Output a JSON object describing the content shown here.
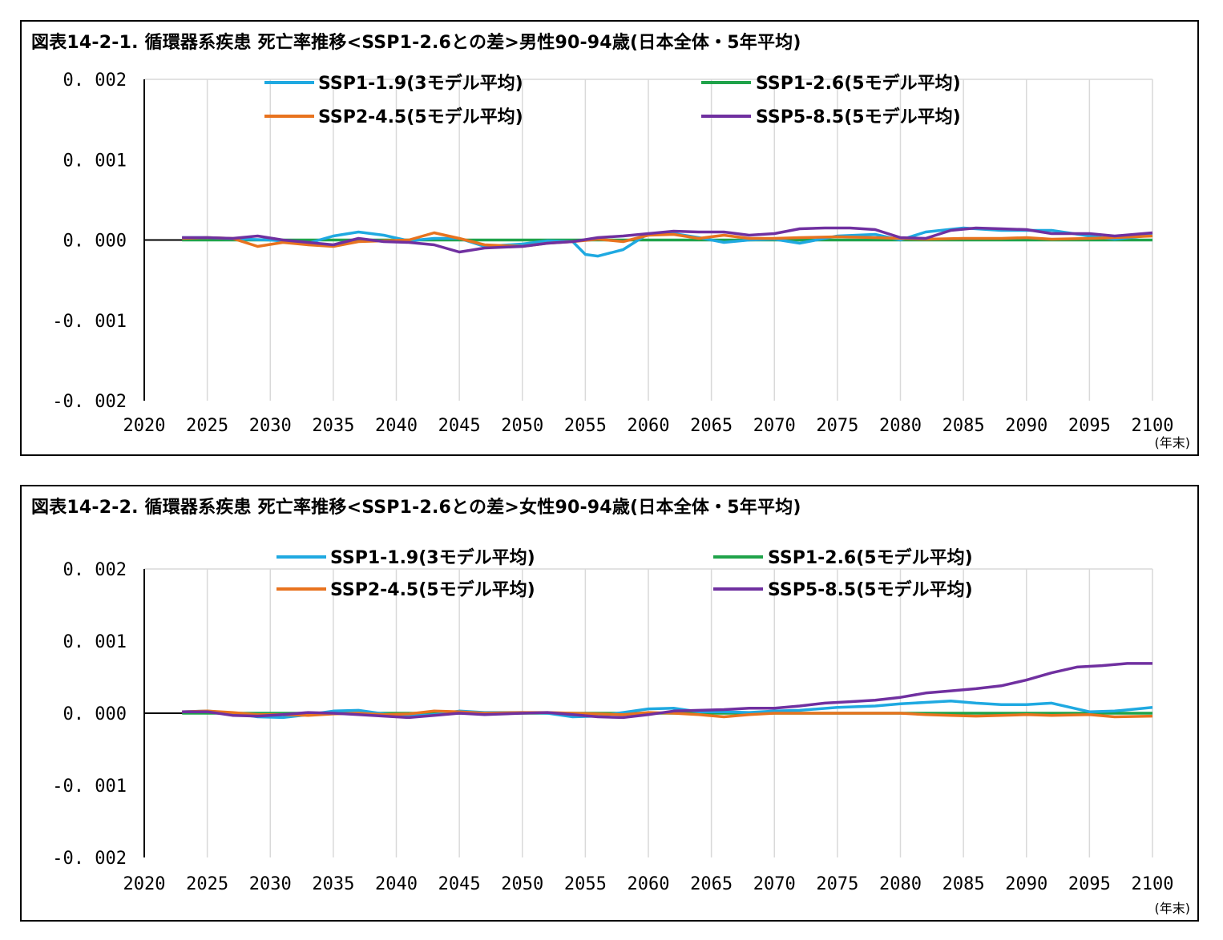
{
  "chart_data": [
    {
      "type": "line",
      "title": "図表14-2-1. 循環器系疾患 死亡率推移<SSP1-2.6との差>男性90-94歳(日本全体・5年平均)",
      "x_unit_label": "(年末)",
      "xlim": [
        2020,
        2100
      ],
      "ylim": [
        -0.002,
        0.002
      ],
      "x_ticks": [
        "2020",
        "2025",
        "2030",
        "2035",
        "2040",
        "2045",
        "2050",
        "2055",
        "2060",
        "2065",
        "2070",
        "2075",
        "2080",
        "2085",
        "2090",
        "2095",
        "2100"
      ],
      "y_ticks": [
        "0.002",
        "0.001",
        "0.000",
        "-0.001",
        "-0.002"
      ],
      "legend_position": "top",
      "grid": "vertical",
      "series": [
        {
          "name": "SSP1-1.9(3モデル平均)",
          "color": "#1FA9E1",
          "x": [
            2023,
            2025,
            2028,
            2030,
            2033,
            2035,
            2037,
            2039,
            2041,
            2043,
            2045,
            2047,
            2050,
            2052,
            2054,
            2055,
            2056,
            2058,
            2060,
            2062,
            2064,
            2066,
            2068,
            2070,
            2072,
            2075,
            2078,
            2080,
            2082,
            2085,
            2088,
            2090,
            2092,
            2095,
            2097,
            2100
          ],
          "y": [
            3e-05,
            3e-05,
            1e-05,
            0.0,
            -4e-05,
            5e-05,
            0.0001,
            6e-05,
            -1e-05,
            2e-05,
            2e-05,
            -8e-05,
            -5e-05,
            -1e-05,
            -2e-05,
            -0.00018,
            -0.0002,
            -0.00012,
            8e-05,
            8e-05,
            3e-05,
            -3e-05,
            0.0,
            1e-05,
            -4e-05,
            5e-05,
            7e-05,
            0.0,
            0.0001,
            0.00015,
            0.00012,
            0.00012,
            0.00012,
            5e-05,
            1e-05,
            6e-05
          ]
        },
        {
          "name": "SSP1-2.6(5モデル平均)",
          "color": "#1FA34A",
          "x": [
            2023,
            2100
          ],
          "y": [
            0.0,
            0.0
          ]
        },
        {
          "name": "SSP2-4.5(5モデル平均)",
          "color": "#E8731F",
          "x": [
            2023,
            2025,
            2027,
            2029,
            2031,
            2033,
            2035,
            2037,
            2039,
            2041,
            2043,
            2045,
            2047,
            2050,
            2052,
            2054,
            2056,
            2058,
            2060,
            2062,
            2064,
            2066,
            2068,
            2070,
            2072,
            2075,
            2078,
            2080,
            2082,
            2085,
            2088,
            2090,
            2092,
            2095,
            2097,
            2100
          ],
          "y": [
            2e-05,
            3e-05,
            2e-05,
            -8e-05,
            -3e-05,
            -6e-05,
            -8e-05,
            -2e-05,
            -1e-05,
            0.0,
            9e-05,
            2e-05,
            -6e-05,
            -8e-05,
            -4e-05,
            -2e-05,
            1e-05,
            -2e-05,
            6e-05,
            7e-05,
            2e-05,
            6e-05,
            2e-05,
            2e-05,
            3e-05,
            4e-05,
            3e-05,
            2e-05,
            1e-05,
            2e-05,
            2e-05,
            3e-05,
            1e-05,
            2e-05,
            3e-05,
            5e-05
          ]
        },
        {
          "name": "SSP5-8.5(5モデル平均)",
          "color": "#7030A0",
          "x": [
            2023,
            2025,
            2027,
            2029,
            2031,
            2033,
            2035,
            2037,
            2039,
            2041,
            2043,
            2045,
            2047,
            2050,
            2052,
            2054,
            2056,
            2058,
            2060,
            2062,
            2064,
            2066,
            2068,
            2070,
            2072,
            2074,
            2076,
            2078,
            2080,
            2082,
            2084,
            2086,
            2088,
            2090,
            2092,
            2095,
            2097,
            2100
          ],
          "y": [
            3e-05,
            3e-05,
            2e-05,
            5e-05,
            0.0,
            -3e-05,
            -6e-05,
            2e-05,
            -2e-05,
            -3e-05,
            -6e-05,
            -0.00015,
            -0.0001,
            -8e-05,
            -4e-05,
            -2e-05,
            3e-05,
            5e-05,
            8e-05,
            0.00011,
            0.0001,
            0.0001,
            6e-05,
            8e-05,
            0.00014,
            0.00015,
            0.00015,
            0.00013,
            3e-05,
            2e-05,
            0.00012,
            0.00015,
            0.00014,
            0.00013,
            8e-05,
            8e-05,
            5e-05,
            9e-05
          ]
        }
      ]
    },
    {
      "type": "line",
      "title": "図表14-2-2. 循環器系疾患 死亡率推移<SSP1-2.6との差>女性90-94歳(日本全体・5年平均)",
      "x_unit_label": "(年末)",
      "xlim": [
        2020,
        2100
      ],
      "ylim": [
        -0.002,
        0.002
      ],
      "x_ticks": [
        "2020",
        "2025",
        "2030",
        "2035",
        "2040",
        "2045",
        "2050",
        "2055",
        "2060",
        "2065",
        "2070",
        "2075",
        "2080",
        "2085",
        "2090",
        "2095",
        "2100"
      ],
      "y_ticks": [
        "0.002",
        "0.001",
        "0.000",
        "-0.001",
        "-0.002"
      ],
      "legend_position": "top",
      "grid": "vertical",
      "series": [
        {
          "name": "SSP1-1.9(3モデル平均)",
          "color": "#1FA9E1",
          "x": [
            2023,
            2025,
            2027,
            2029,
            2031,
            2033,
            2035,
            2037,
            2039,
            2041,
            2043,
            2045,
            2047,
            2050,
            2052,
            2054,
            2056,
            2058,
            2060,
            2062,
            2064,
            2066,
            2068,
            2070,
            2072,
            2075,
            2078,
            2080,
            2082,
            2084,
            2086,
            2088,
            2090,
            2092,
            2095,
            2097,
            2100
          ],
          "y": [
            2e-05,
            3e-05,
            0.0,
            -5e-05,
            -6e-05,
            -2e-05,
            3e-05,
            4e-05,
            -1e-05,
            -4e-05,
            -2e-05,
            3e-05,
            1e-05,
            1e-05,
            0.0,
            -5e-05,
            -4e-05,
            1e-05,
            6e-05,
            7e-05,
            2e-05,
            2e-05,
            1e-05,
            3e-05,
            4e-05,
            8e-05,
            0.0001,
            0.00013,
            0.00015,
            0.00017,
            0.00014,
            0.00012,
            0.00012,
            0.00014,
            2e-05,
            3e-05,
            8e-05
          ]
        },
        {
          "name": "SSP1-2.6(5モデル平均)",
          "color": "#1FA34A",
          "x": [
            2023,
            2100
          ],
          "y": [
            0.0,
            0.0
          ]
        },
        {
          "name": "SSP2-4.5(5モデル平均)",
          "color": "#E8731F",
          "x": [
            2023,
            2025,
            2027,
            2029,
            2031,
            2033,
            2035,
            2037,
            2039,
            2041,
            2043,
            2045,
            2047,
            2050,
            2052,
            2054,
            2056,
            2058,
            2060,
            2062,
            2064,
            2066,
            2068,
            2070,
            2072,
            2075,
            2078,
            2080,
            2082,
            2084,
            2086,
            2088,
            2090,
            2092,
            2095,
            2097,
            2100
          ],
          "y": [
            2e-05,
            3e-05,
            1e-05,
            -2e-05,
            -2e-05,
            -3e-05,
            -1e-05,
            0.0,
            -2e-05,
            -1e-05,
            3e-05,
            2e-05,
            0.0,
            1e-05,
            1e-05,
            0.0,
            -1e-05,
            -2e-05,
            1e-05,
            0.0,
            -2e-05,
            -5e-05,
            -2e-05,
            0.0,
            0.0,
            0.0,
            0.0,
            0.0,
            -2e-05,
            -3e-05,
            -4e-05,
            -3e-05,
            -2e-05,
            -3e-05,
            -2e-05,
            -5e-05,
            -4e-05
          ]
        },
        {
          "name": "SSP5-8.5(5モデル平均)",
          "color": "#7030A0",
          "x": [
            2023,
            2025,
            2027,
            2029,
            2031,
            2033,
            2035,
            2037,
            2039,
            2041,
            2043,
            2045,
            2047,
            2050,
            2052,
            2054,
            2056,
            2058,
            2060,
            2062,
            2064,
            2066,
            2068,
            2070,
            2072,
            2074,
            2076,
            2078,
            2080,
            2082,
            2084,
            2086,
            2088,
            2090,
            2092,
            2094,
            2096,
            2098,
            2100
          ],
          "y": [
            2e-05,
            2e-05,
            -3e-05,
            -4e-05,
            -2e-05,
            1e-05,
            0.0,
            -2e-05,
            -4e-05,
            -6e-05,
            -3e-05,
            0.0,
            -2e-05,
            0.0,
            1e-05,
            -2e-05,
            -5e-05,
            -6e-05,
            -2e-05,
            3e-05,
            4e-05,
            5e-05,
            7e-05,
            7e-05,
            0.0001,
            0.00014,
            0.00016,
            0.00018,
            0.00022,
            0.00028,
            0.00031,
            0.00034,
            0.00038,
            0.00046,
            0.00056,
            0.00064,
            0.00066,
            0.00069,
            0.00069
          ]
        }
      ]
    }
  ]
}
